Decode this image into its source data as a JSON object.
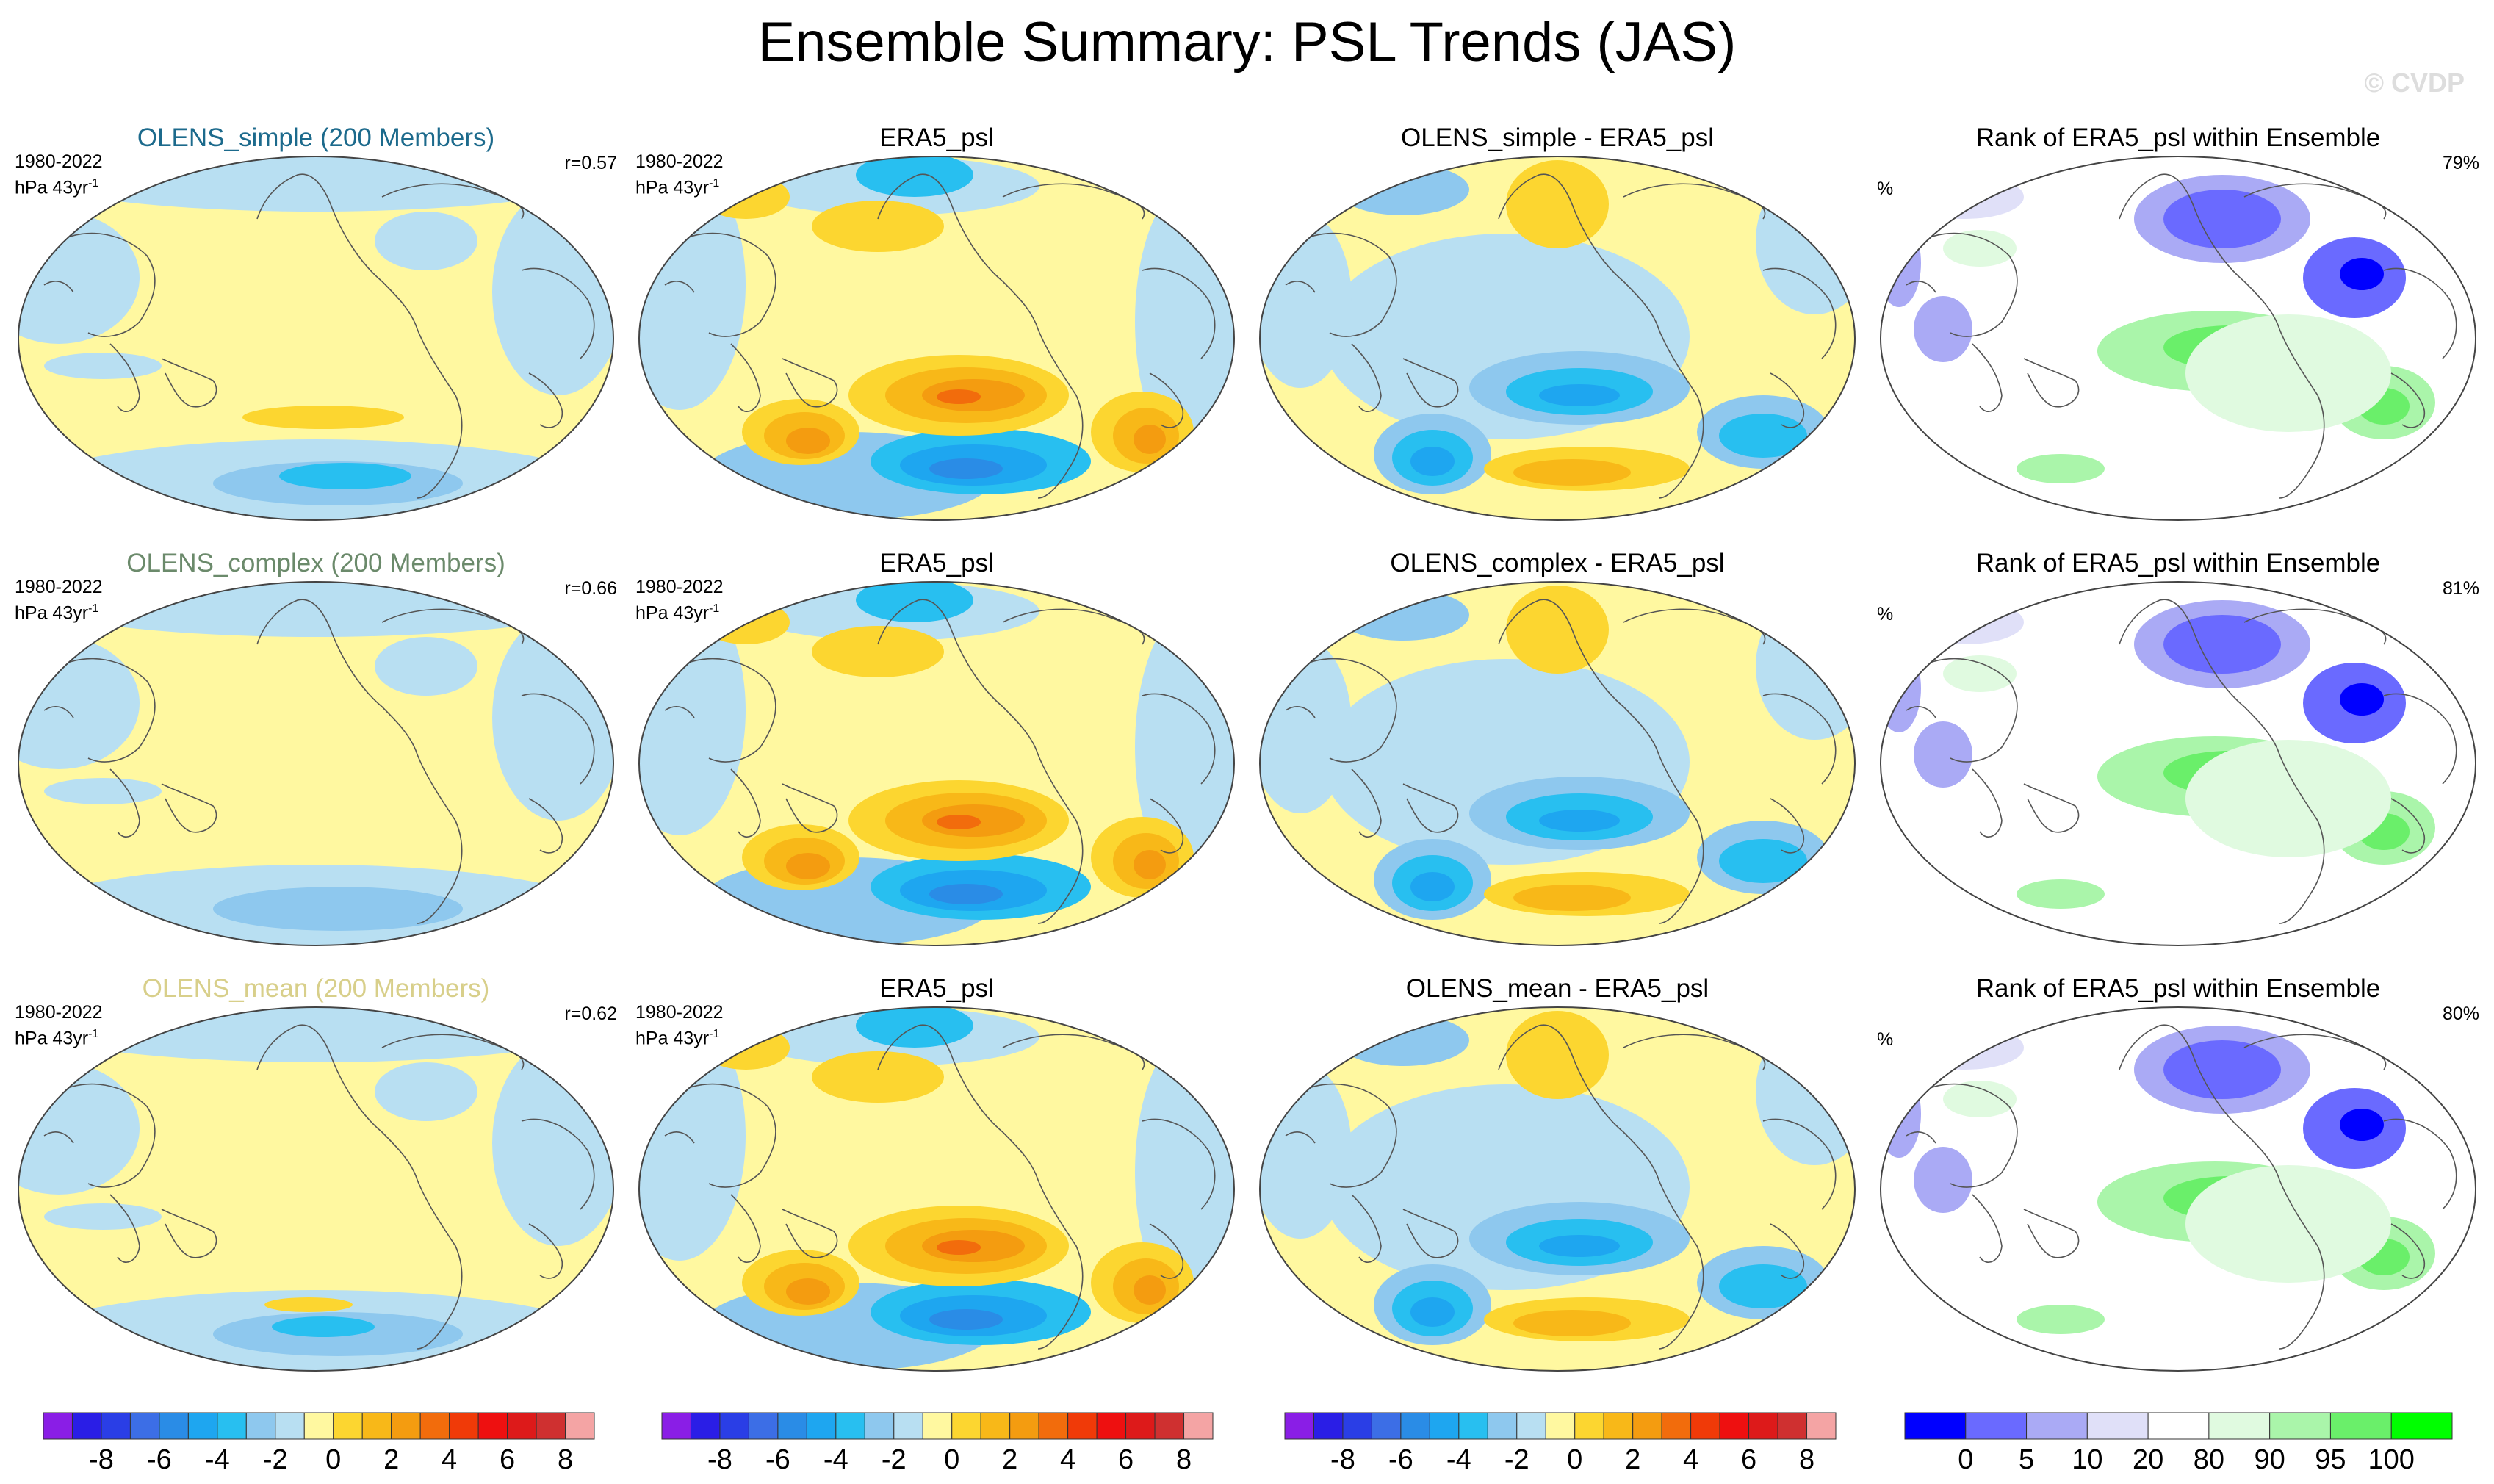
{
  "title": "Ensemble Summary: PSL Trends (JAS)",
  "watermark": "© CVDP",
  "rows": [
    {
      "ensemble": {
        "title": "OLENS_simple (200 Members)",
        "title_color": "#1c6a8c",
        "period": "1980-2022",
        "units": "hPa 43yr",
        "units_exp": "-1",
        "correlation": "r=0.57"
      },
      "obs": {
        "title": "ERA5_psl",
        "period": "1980-2022",
        "units": "hPa 43yr",
        "units_exp": "-1"
      },
      "diff": {
        "title": "OLENS_simple - ERA5_psl"
      },
      "rank": {
        "title": "Rank of ERA5_psl within Ensemble",
        "unit_label": "%",
        "percent": "79%"
      }
    },
    {
      "ensemble": {
        "title": "OLENS_complex (200 Members)",
        "title_color": "#6b8a6b",
        "period": "1980-2022",
        "units": "hPa 43yr",
        "units_exp": "-1",
        "correlation": "r=0.66"
      },
      "obs": {
        "title": "ERA5_psl",
        "period": "1980-2022",
        "units": "hPa 43yr",
        "units_exp": "-1"
      },
      "diff": {
        "title": "OLENS_complex - ERA5_psl"
      },
      "rank": {
        "title": "Rank of ERA5_psl within Ensemble",
        "unit_label": "%",
        "percent": "81%"
      }
    },
    {
      "ensemble": {
        "title": "OLENS_mean (200 Members)",
        "title_color": "#d8cf8a",
        "period": "1980-2022",
        "units": "hPa 43yr",
        "units_exp": "-1",
        "correlation": "r=0.62"
      },
      "obs": {
        "title": "ERA5_psl",
        "period": "1980-2022",
        "units": "hPa 43yr",
        "units_exp": "-1"
      },
      "diff": {
        "title": "OLENS_mean - ERA5_psl"
      },
      "rank": {
        "title": "Rank of ERA5_psl within Ensemble",
        "unit_label": "%",
        "percent": "80%"
      }
    }
  ],
  "trend_colorbar": {
    "colors": [
      "#8a1ee6",
      "#2a1ee6",
      "#2a3ee6",
      "#3c6ee6",
      "#2a8ce6",
      "#1ea6f0",
      "#28bff0",
      "#8ec8ee",
      "#b8dff2",
      "#fff8a0",
      "#fcd630",
      "#f8b818",
      "#f49c10",
      "#f26c0c",
      "#f03a08",
      "#ee1010",
      "#dd1a1a",
      "#cf3030",
      "#f4a4a4"
    ],
    "tick_labels": [
      "-8",
      "-6",
      "-4",
      "-2",
      "0",
      "2",
      "4",
      "6",
      "8"
    ]
  },
  "rank_colorbar": {
    "colors": [
      "#0000ff",
      "#6a6aff",
      "#aaaaf5",
      "#e0e0f8",
      "#ffffff",
      "#e0fae0",
      "#aaf5aa",
      "#6aef6a",
      "#00ff00"
    ],
    "tick_labels": [
      "0",
      "5",
      "10",
      "20",
      "80",
      "90",
      "95",
      "100"
    ]
  }
}
